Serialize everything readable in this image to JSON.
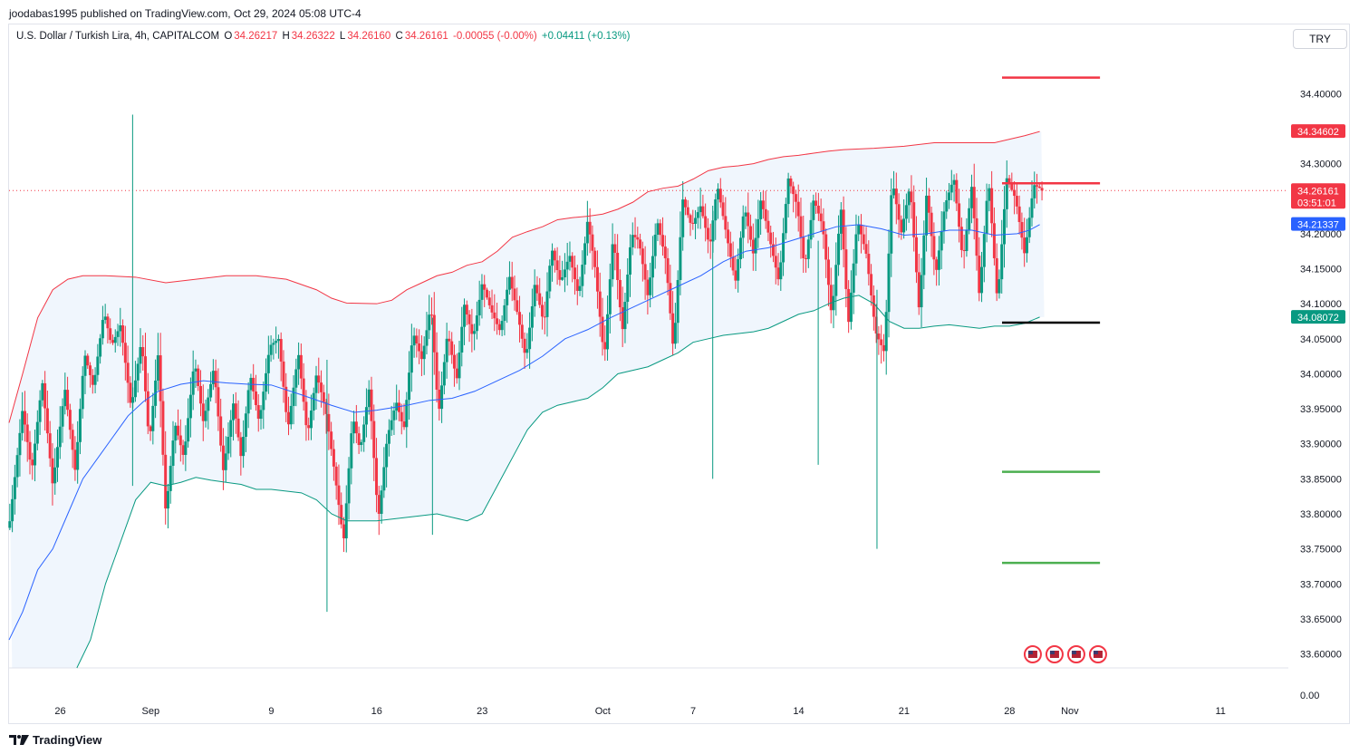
{
  "header": {
    "publisher": "joodabas1995 published on TradingView.com, Oct 29, 2024 05:08 UTC-4"
  },
  "legend": {
    "symbol": "U.S. Dollar / Turkish Lira, 4h, CAPITALCOM",
    "open_label": "O",
    "open": "34.26217",
    "high_label": "H",
    "high": "34.26322",
    "low_label": "L",
    "low": "34.26160",
    "close_label": "C",
    "close": "34.26161",
    "change": "-0.00055 (-0.00%)",
    "indicator_change": "+0.04411 (+0.13%)"
  },
  "currency_button": "TRY",
  "footer": {
    "brand": "TradingView"
  },
  "colors": {
    "up": "#089981",
    "down": "#f23645",
    "upper_band": "#f23645",
    "lower_band": "#089981",
    "basis": "#2962ff",
    "band_fill": "#f0f6fd",
    "resistance": "#f23645",
    "support": "#4caf50",
    "pivot": "#000000"
  },
  "chart_data": {
    "type": "candlestick",
    "timeframe": "4h",
    "y_range": [
      33.58,
      34.46
    ],
    "y_ticks": [
      "34.40000",
      "34.30000",
      "34.20000",
      "34.15000",
      "34.10000",
      "34.05000",
      "34.00000",
      "33.95000",
      "33.90000",
      "33.85000",
      "33.80000",
      "33.75000",
      "33.70000",
      "33.65000",
      "33.60000"
    ],
    "y_bottom_label": "0.00",
    "x_ticks": [
      {
        "label": "26",
        "day": 0
      },
      {
        "label": "Sep",
        "day": 6
      },
      {
        "label": "9",
        "day": 14
      },
      {
        "label": "16",
        "day": 21
      },
      {
        "label": "23",
        "day": 28
      },
      {
        "label": "Oct",
        "day": 36
      },
      {
        "label": "7",
        "day": 42
      },
      {
        "label": "14",
        "day": 49
      },
      {
        "label": "21",
        "day": 56
      },
      {
        "label": "28",
        "day": 63
      },
      {
        "label": "Nov",
        "day": 67
      },
      {
        "label": "11",
        "day": 77
      }
    ],
    "x_day_range": [
      -3.4,
      81.5
    ],
    "last_day": 65.3,
    "price_labels": [
      {
        "value": 34.34602,
        "text": "34.34602",
        "color": "#f23645"
      },
      {
        "value": 34.26161,
        "text": "34.26161",
        "sub": "03:51:01",
        "color": "#f23645"
      },
      {
        "value": 34.21337,
        "text": "34.21337",
        "color": "#2962ff"
      },
      {
        "value": 34.08072,
        "text": "34.08072",
        "color": "#089981"
      }
    ],
    "current_price": 34.26161,
    "horizontal_levels": [
      {
        "value": 34.423,
        "role": "resistance"
      },
      {
        "value": 34.272,
        "role": "resistance"
      },
      {
        "value": 34.073,
        "role": "pivot"
      },
      {
        "value": 33.86,
        "role": "support"
      },
      {
        "value": 33.73,
        "role": "support"
      }
    ],
    "level_day_range": [
      62.5,
      69.0
    ],
    "upper_band": [
      [
        -3.4,
        33.93
      ],
      [
        -2.5,
        34.0
      ],
      [
        -1.5,
        34.08
      ],
      [
        -0.5,
        34.12
      ],
      [
        0.5,
        34.135
      ],
      [
        1.5,
        34.14
      ],
      [
        3,
        34.14
      ],
      [
        5,
        34.138
      ],
      [
        7,
        34.13
      ],
      [
        9,
        34.135
      ],
      [
        11,
        34.14
      ],
      [
        13,
        34.14
      ],
      [
        15,
        34.135
      ],
      [
        17,
        34.12
      ],
      [
        18,
        34.108
      ],
      [
        19,
        34.101
      ],
      [
        21,
        34.1
      ],
      [
        22,
        34.105
      ],
      [
        23,
        34.12
      ],
      [
        24,
        34.13
      ],
      [
        25,
        34.14
      ],
      [
        26,
        34.145
      ],
      [
        27,
        34.155
      ],
      [
        28,
        34.16
      ],
      [
        29,
        34.175
      ],
      [
        30,
        34.195
      ],
      [
        31,
        34.203
      ],
      [
        32,
        34.21
      ],
      [
        33,
        34.22
      ],
      [
        34,
        34.223
      ],
      [
        35,
        34.225
      ],
      [
        36,
        34.228
      ],
      [
        37,
        34.235
      ],
      [
        38,
        34.245
      ],
      [
        39,
        34.26
      ],
      [
        40,
        34.265
      ],
      [
        41,
        34.268
      ],
      [
        42,
        34.278
      ],
      [
        43,
        34.29
      ],
      [
        44,
        34.295
      ],
      [
        45,
        34.297
      ],
      [
        46,
        34.3
      ],
      [
        47,
        34.306
      ],
      [
        48,
        34.31
      ],
      [
        49,
        34.312
      ],
      [
        50,
        34.315
      ],
      [
        51,
        34.318
      ],
      [
        52,
        34.32
      ],
      [
        54,
        34.322
      ],
      [
        56,
        34.325
      ],
      [
        58,
        34.33
      ],
      [
        60,
        34.33
      ],
      [
        62,
        34.33
      ],
      [
        63,
        34.335
      ],
      [
        64,
        34.34
      ],
      [
        65,
        34.346
      ]
    ],
    "lower_band": [
      [
        1.1,
        33.58
      ],
      [
        2,
        33.62
      ],
      [
        3,
        33.7
      ],
      [
        4,
        33.76
      ],
      [
        5,
        33.82
      ],
      [
        6,
        33.845
      ],
      [
        7,
        33.84
      ],
      [
        8,
        33.845
      ],
      [
        9,
        33.852
      ],
      [
        10,
        33.848
      ],
      [
        12,
        33.842
      ],
      [
        13,
        33.835
      ],
      [
        14,
        33.835
      ],
      [
        16,
        33.83
      ],
      [
        17,
        33.82
      ],
      [
        18,
        33.8
      ],
      [
        19,
        33.79
      ],
      [
        21,
        33.79
      ],
      [
        23,
        33.795
      ],
      [
        25,
        33.8
      ],
      [
        26,
        33.795
      ],
      [
        27,
        33.79
      ],
      [
        28,
        33.8
      ],
      [
        29,
        33.84
      ],
      [
        30,
        33.88
      ],
      [
        31,
        33.92
      ],
      [
        32,
        33.945
      ],
      [
        33,
        33.955
      ],
      [
        34,
        33.96
      ],
      [
        35,
        33.965
      ],
      [
        36,
        33.98
      ],
      [
        37,
        34.0
      ],
      [
        38,
        34.005
      ],
      [
        39,
        34.01
      ],
      [
        40,
        34.02
      ],
      [
        41,
        34.03
      ],
      [
        42,
        34.045
      ],
      [
        43,
        34.05
      ],
      [
        44,
        34.055
      ],
      [
        46,
        34.06
      ],
      [
        47,
        34.065
      ],
      [
        48,
        34.075
      ],
      [
        49,
        34.085
      ],
      [
        50,
        34.09
      ],
      [
        51,
        34.1
      ],
      [
        52,
        34.108
      ],
      [
        53,
        34.112
      ],
      [
        54,
        34.1
      ],
      [
        55,
        34.075
      ],
      [
        56,
        34.065
      ],
      [
        57,
        34.065
      ],
      [
        58,
        34.068
      ],
      [
        59,
        34.07
      ],
      [
        61,
        34.065
      ],
      [
        62,
        34.068
      ],
      [
        63,
        34.068
      ],
      [
        64,
        34.072
      ],
      [
        65,
        34.081
      ]
    ],
    "basis": [
      [
        -3.4,
        33.62
      ],
      [
        -2.5,
        33.66
      ],
      [
        -1.5,
        33.72
      ],
      [
        -0.5,
        33.75
      ],
      [
        0.5,
        33.8
      ],
      [
        1.5,
        33.85
      ],
      [
        2.5,
        33.88
      ],
      [
        3.5,
        33.91
      ],
      [
        4.5,
        33.94
      ],
      [
        5.5,
        33.96
      ],
      [
        6.5,
        33.975
      ],
      [
        8,
        33.985
      ],
      [
        9.5,
        33.99
      ],
      [
        11,
        33.987
      ],
      [
        12.5,
        33.985
      ],
      [
        14,
        33.984
      ],
      [
        16,
        33.97
      ],
      [
        18,
        33.955
      ],
      [
        19.5,
        33.945
      ],
      [
        21,
        33.948
      ],
      [
        23,
        33.955
      ],
      [
        24.5,
        33.962
      ],
      [
        26,
        33.965
      ],
      [
        27.5,
        33.975
      ],
      [
        29,
        33.99
      ],
      [
        30.5,
        34.005
      ],
      [
        32,
        34.025
      ],
      [
        33.5,
        34.05
      ],
      [
        35,
        34.063
      ],
      [
        36.5,
        34.08
      ],
      [
        38,
        34.095
      ],
      [
        39.5,
        34.11
      ],
      [
        41,
        34.125
      ],
      [
        42.5,
        34.14
      ],
      [
        44,
        34.16
      ],
      [
        45.5,
        34.175
      ],
      [
        47,
        34.18
      ],
      [
        48.5,
        34.19
      ],
      [
        50,
        34.2
      ],
      [
        51.5,
        34.21
      ],
      [
        53,
        34.213
      ],
      [
        54.5,
        34.207
      ],
      [
        56,
        34.198
      ],
      [
        57.5,
        34.2
      ],
      [
        59,
        34.205
      ],
      [
        60.5,
        34.205
      ],
      [
        62,
        34.198
      ],
      [
        63.5,
        34.2
      ],
      [
        64.3,
        34.205
      ],
      [
        65,
        34.213
      ]
    ],
    "candle_path": [
      [
        -3.4,
        33.78
      ],
      [
        -2.5,
        33.95
      ],
      [
        -1.9,
        33.86
      ],
      [
        -1.2,
        33.99
      ],
      [
        -0.5,
        33.84
      ],
      [
        0.3,
        33.98
      ],
      [
        1.0,
        33.86
      ],
      [
        1.6,
        34.03
      ],
      [
        2.2,
        33.98
      ],
      [
        2.9,
        34.09
      ],
      [
        3.4,
        34.04
      ],
      [
        4.0,
        34.07
      ],
      [
        4.7,
        33.95
      ],
      [
        5.4,
        34.05
      ],
      [
        5.9,
        33.9
      ],
      [
        6.5,
        34.03
      ],
      [
        7.0,
        33.8
      ],
      [
        7.6,
        33.93
      ],
      [
        8.2,
        33.88
      ],
      [
        8.9,
        34.02
      ],
      [
        9.5,
        33.93
      ],
      [
        10.2,
        34.01
      ],
      [
        10.8,
        33.86
      ],
      [
        11.5,
        33.96
      ],
      [
        12.0,
        33.88
      ],
      [
        12.6,
        34.0
      ],
      [
        13.2,
        33.93
      ],
      [
        13.9,
        34.04
      ],
      [
        14.5,
        34.05
      ],
      [
        15.1,
        33.92
      ],
      [
        15.8,
        34.03
      ],
      [
        16.4,
        33.91
      ],
      [
        17.0,
        34.0
      ],
      [
        17.6,
        33.95
      ],
      [
        18.2,
        33.86
      ],
      [
        18.8,
        33.76
      ],
      [
        19.4,
        33.94
      ],
      [
        19.9,
        33.89
      ],
      [
        20.5,
        33.98
      ],
      [
        21.1,
        33.79
      ],
      [
        21.7,
        33.91
      ],
      [
        22.3,
        33.96
      ],
      [
        22.8,
        33.92
      ],
      [
        23.4,
        34.06
      ],
      [
        24.0,
        34.02
      ],
      [
        24.6,
        34.1
      ],
      [
        25.1,
        33.94
      ],
      [
        25.7,
        34.06
      ],
      [
        26.3,
        33.99
      ],
      [
        26.8,
        34.1
      ],
      [
        27.4,
        34.05
      ],
      [
        28.0,
        34.13
      ],
      [
        28.6,
        34.09
      ],
      [
        29.2,
        34.06
      ],
      [
        29.8,
        34.14
      ],
      [
        30.4,
        34.08
      ],
      [
        30.9,
        34.02
      ],
      [
        31.5,
        34.13
      ],
      [
        32.1,
        34.07
      ],
      [
        32.6,
        34.18
      ],
      [
        33.2,
        34.13
      ],
      [
        33.8,
        34.17
      ],
      [
        34.4,
        34.11
      ],
      [
        35.0,
        34.22
      ],
      [
        35.5,
        34.15
      ],
      [
        36.1,
        34.02
      ],
      [
        36.7,
        34.2
      ],
      [
        37.3,
        34.06
      ],
      [
        37.9,
        34.2
      ],
      [
        38.4,
        34.19
      ],
      [
        39.0,
        34.11
      ],
      [
        39.6,
        34.22
      ],
      [
        40.2,
        34.16
      ],
      [
        40.7,
        34.03
      ],
      [
        41.3,
        34.25
      ],
      [
        41.9,
        34.21
      ],
      [
        42.5,
        34.24
      ],
      [
        43.1,
        34.18
      ],
      [
        43.6,
        34.27
      ],
      [
        44.2,
        34.2
      ],
      [
        44.8,
        34.13
      ],
      [
        45.4,
        34.24
      ],
      [
        46.0,
        34.17
      ],
      [
        46.5,
        34.25
      ],
      [
        47.1,
        34.19
      ],
      [
        47.7,
        34.13
      ],
      [
        48.3,
        34.28
      ],
      [
        48.9,
        34.24
      ],
      [
        49.4,
        34.15
      ],
      [
        50.0,
        34.25
      ],
      [
        50.6,
        34.21
      ],
      [
        51.2,
        34.08
      ],
      [
        51.8,
        34.24
      ],
      [
        52.3,
        34.07
      ],
      [
        52.9,
        34.22
      ],
      [
        53.5,
        34.17
      ],
      [
        54.1,
        34.06
      ],
      [
        54.7,
        34.03
      ],
      [
        55.2,
        34.28
      ],
      [
        55.8,
        34.2
      ],
      [
        56.4,
        34.27
      ],
      [
        57.0,
        34.09
      ],
      [
        57.5,
        34.26
      ],
      [
        58.1,
        34.14
      ],
      [
        58.7,
        34.24
      ],
      [
        59.3,
        34.28
      ],
      [
        59.9,
        34.16
      ],
      [
        60.5,
        34.27
      ],
      [
        61.0,
        34.11
      ],
      [
        61.6,
        34.28
      ],
      [
        62.2,
        34.1
      ],
      [
        62.8,
        34.28
      ],
      [
        63.4,
        34.25
      ],
      [
        64.0,
        34.17
      ],
      [
        64.6,
        34.27
      ],
      [
        65.3,
        34.26161
      ]
    ],
    "wick_spikes": [
      [
        4.8,
        34.37,
        33.84
      ],
      [
        17.7,
        34.02,
        33.66
      ],
      [
        43.3,
        34.24,
        33.85
      ],
      [
        50.3,
        34.19,
        33.87
      ],
      [
        54.2,
        34.12,
        33.75
      ],
      [
        24.7,
        34.08,
        33.77
      ]
    ]
  }
}
